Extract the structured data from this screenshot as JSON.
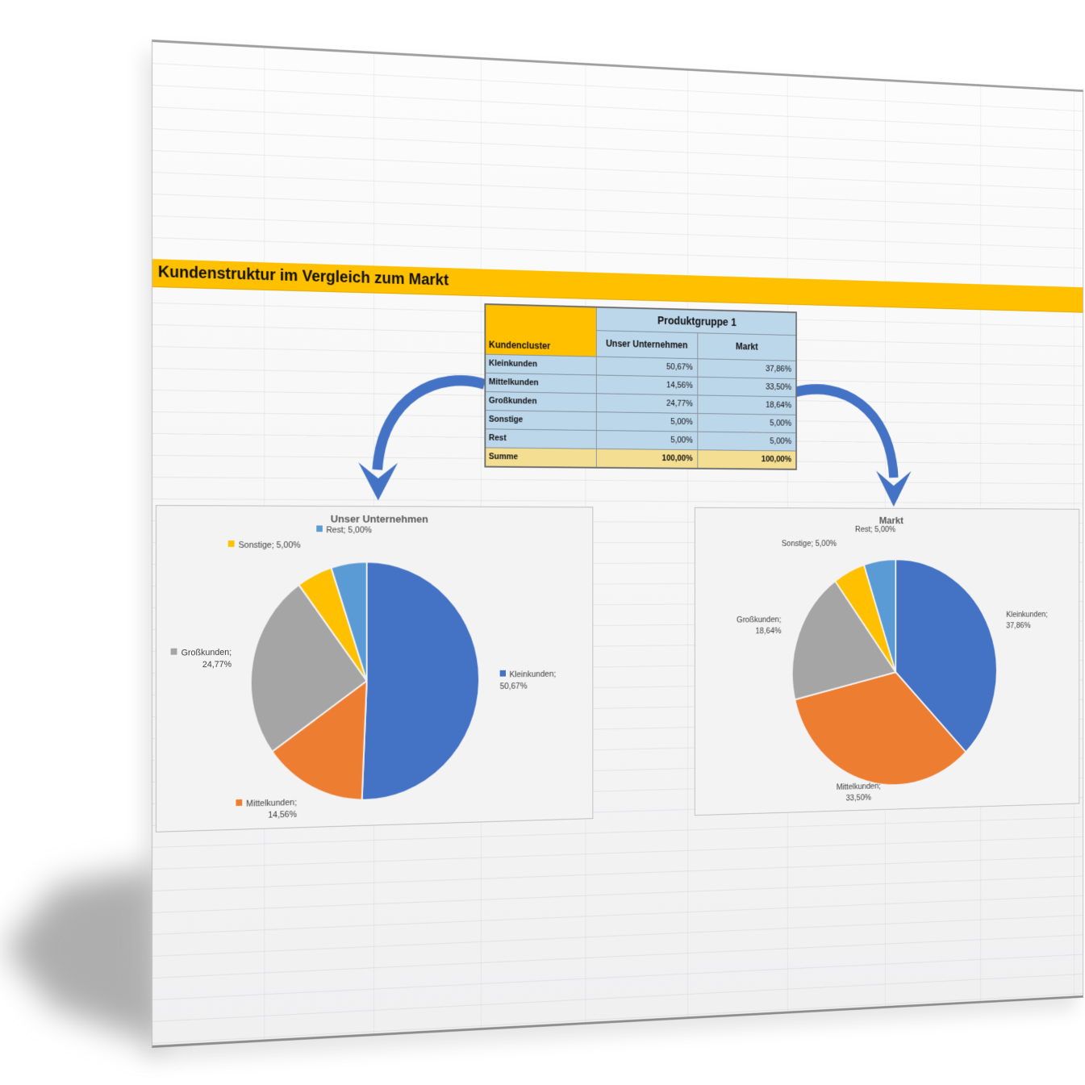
{
  "page": {
    "title": "Kundenstruktur im Vergleich zum Markt"
  },
  "table": {
    "corner_label": "Kundencluster",
    "group_header": "Produktgruppe 1",
    "columns": [
      "Unser Unternehmen",
      "Markt"
    ],
    "rows": [
      {
        "label": "Kleinkunden",
        "values": [
          "50,67%",
          "37,86%"
        ]
      },
      {
        "label": "Mittelkunden",
        "values": [
          "14,56%",
          "33,50%"
        ]
      },
      {
        "label": "Großkunden",
        "values": [
          "24,77%",
          "18,64%"
        ]
      },
      {
        "label": "Sonstige",
        "values": [
          "5,00%",
          "5,00%"
        ]
      },
      {
        "label": "Rest",
        "values": [
          "5,00%",
          "5,00%"
        ]
      }
    ],
    "total_row": {
      "label": "Summe",
      "values": [
        "100,00%",
        "100,00%"
      ]
    }
  },
  "chart_data": [
    {
      "type": "pie",
      "title": "Unser Unternehmen",
      "labels": [
        "Kleinkunden",
        "Mittelkunden",
        "Großkunden",
        "Sonstige",
        "Rest"
      ],
      "values": [
        50.67,
        14.56,
        24.77,
        5.0,
        5.0
      ],
      "value_labels": [
        "50,67%",
        "14,56%",
        "24,77%",
        "5,00%",
        "5,00%"
      ],
      "colors": [
        "#4472C4",
        "#ED7D31",
        "#A5A5A5",
        "#FFC000",
        "#5B9BD5"
      ],
      "start_angle_deg": 0,
      "direction": "clockwise",
      "legend_position": "none",
      "legend_keys_in_labels": true
    },
    {
      "type": "pie",
      "title": "Markt",
      "labels": [
        "Kleinkunden",
        "Mittelkunden",
        "Großkunden",
        "Sonstige",
        "Rest"
      ],
      "values": [
        37.86,
        33.5,
        18.64,
        5.0,
        5.0
      ],
      "value_labels": [
        "37,86%",
        "33,50%",
        "18,64%",
        "5,00%",
        "5,00%"
      ],
      "colors": [
        "#4472C4",
        "#ED7D31",
        "#A5A5A5",
        "#FFC000",
        "#5B9BD5"
      ],
      "start_angle_deg": 0,
      "direction": "clockwise",
      "legend_position": "none",
      "legend_keys_in_labels": false
    }
  ],
  "colors": {
    "accent_gold": "#FFC000",
    "table_blue": "#BCD6EA",
    "sum_yellow": "#F3DE92",
    "arrow_blue": "#4472C4",
    "pie_palette": [
      "#4472C4",
      "#ED7D31",
      "#A5A5A5",
      "#FFC000",
      "#5B9BD5"
    ]
  }
}
